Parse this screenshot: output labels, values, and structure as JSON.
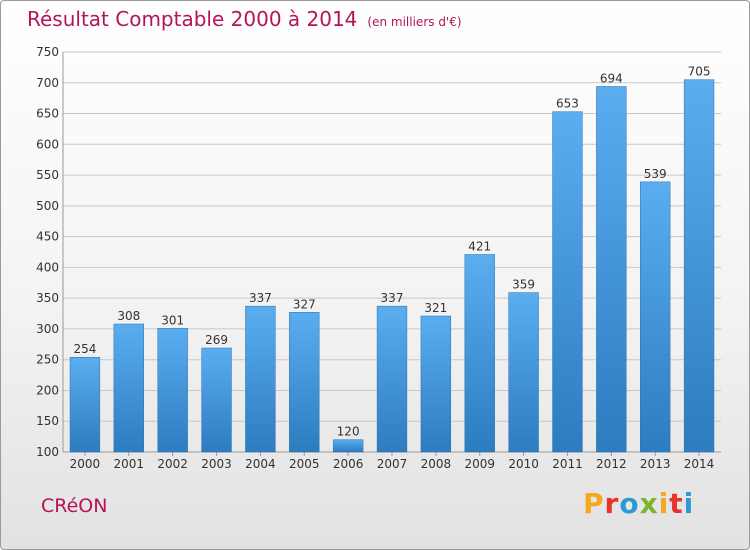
{
  "title": "Résultat Comptable 2000 à 2014",
  "unit": "(en milliers d'€)",
  "commune": "CRéON",
  "brand": "Proxiti",
  "colors": {
    "title": "#b5145a",
    "bar_top": "#5aaef0",
    "bar_bottom": "#2c7cc0",
    "grid": "#c8c8c8",
    "brand_letters": [
      "#f4a81d",
      "#e8332a",
      "#2d9ad3",
      "#7cb52a",
      "#f4a81d",
      "#e8332a",
      "#2d9ad3"
    ]
  },
  "chart_data": {
    "type": "bar",
    "categories": [
      "2000",
      "2001",
      "2002",
      "2003",
      "2004",
      "2005",
      "2006",
      "2007",
      "2008",
      "2009",
      "2010",
      "2011",
      "2012",
      "2013",
      "2014"
    ],
    "values": [
      254,
      308,
      301,
      269,
      337,
      327,
      120,
      337,
      321,
      421,
      359,
      653,
      694,
      539,
      705
    ],
    "title": "Résultat Comptable 2000 à 2014",
    "subtitle": "(en milliers d'€)",
    "ylim": [
      100,
      750
    ],
    "yticks": [
      100,
      150,
      200,
      250,
      300,
      350,
      400,
      450,
      500,
      550,
      600,
      650,
      700,
      750
    ],
    "grid": true
  }
}
